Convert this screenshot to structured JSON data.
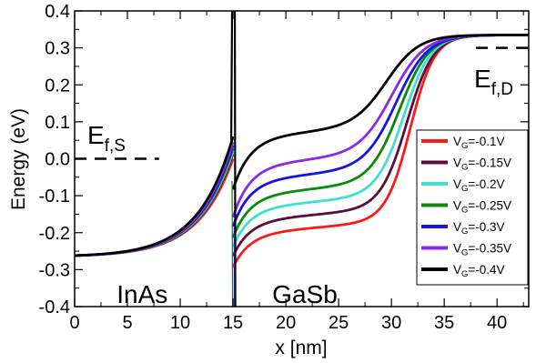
{
  "chart_data": {
    "type": "line",
    "xlabel": "x [nm]",
    "ylabel": "Energy (eV)",
    "xlim": [
      0,
      43
    ],
    "ylim": [
      -0.4,
      0.4
    ],
    "xticks": [
      0,
      5,
      10,
      15,
      20,
      25,
      30,
      35,
      40
    ],
    "xtick_labels": [
      "0",
      "5",
      "10",
      "15",
      "20",
      "25",
      "30",
      "35",
      "40"
    ],
    "yticks": [
      -0.4,
      -0.3,
      -0.2,
      -0.1,
      0.0,
      0.1,
      0.2,
      0.3,
      0.4
    ],
    "ytick_labels": [
      "-0.4",
      "-0.3",
      "-0.2",
      "-0.1",
      "0.0",
      "0.1",
      "0.2",
      "0.3",
      "0.4"
    ],
    "grid": false,
    "legend_position": "center-right",
    "interface_x": 15,
    "region_labels": [
      {
        "text": "InAs",
        "x": 6.4,
        "y": -0.365
      },
      {
        "text": "GaSb",
        "x": 21.8,
        "y": -0.365
      }
    ],
    "fermi_levels": [
      {
        "main": "E",
        "sub": "f,S",
        "x_start": 0,
        "x_end": 8,
        "y": 0.0
      },
      {
        "main": "E",
        "sub": "f,D",
        "x_start": 38,
        "x_end": 43,
        "y": 0.3
      }
    ],
    "series": [
      {
        "legend_main": "V",
        "legend_sub": "G",
        "legend_value": "=-0.1V",
        "color": "#ff1a1a",
        "left_end": 0.0,
        "right_start": -0.28,
        "plateau": -0.19,
        "step_center": 31.8,
        "step_width": 1.15
      },
      {
        "legend_main": "V",
        "legend_sub": "G",
        "legend_value": "=-0.15V",
        "color": "#5a0f3a",
        "left_end": 0.013,
        "right_start": -0.25,
        "plateau": -0.155,
        "step_center": 31.5,
        "step_width": 1.25
      },
      {
        "legend_main": "V",
        "legend_sub": "G",
        "legend_value": "=-0.2V",
        "color": "#40e0d0",
        "left_end": 0.02,
        "right_start": -0.225,
        "plateau": -0.12,
        "step_center": 31.2,
        "step_width": 1.3
      },
      {
        "legend_main": "V",
        "legend_sub": "G",
        "legend_value": "=-0.25V",
        "color": "#0a8a0a",
        "left_end": 0.028,
        "right_start": -0.2,
        "plateau": -0.085,
        "step_center": 30.8,
        "step_width": 1.4
      },
      {
        "legend_main": "V",
        "legend_sub": "G",
        "legend_value": "=-0.3V",
        "color": "#1414e6",
        "left_end": 0.036,
        "right_start": -0.17,
        "plateau": -0.045,
        "step_center": 30.5,
        "step_width": 1.5
      },
      {
        "legend_main": "V",
        "legend_sub": "G",
        "legend_value": "=-0.35V",
        "color": "#8a2be2",
        "left_end": 0.045,
        "right_start": -0.145,
        "plateau": -0.005,
        "step_center": 30.1,
        "step_width": 1.55
      },
      {
        "legend_main": "V",
        "legend_sub": "G",
        "legend_value": "=-0.4V",
        "color": "#000000",
        "left_end": 0.06,
        "right_start": -0.07,
        "plateau": 0.07,
        "step_center": 29.6,
        "step_width": 1.55
      }
    ],
    "left_start": -0.262,
    "right_end": 0.335
  }
}
